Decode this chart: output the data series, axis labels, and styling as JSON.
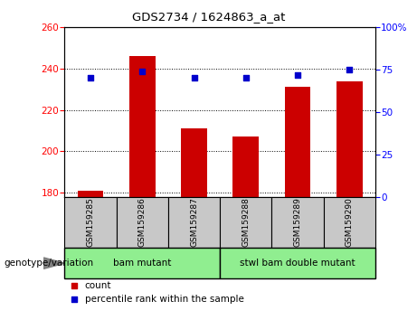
{
  "title": "GDS2734 / 1624863_a_at",
  "samples": [
    "GSM159285",
    "GSM159286",
    "GSM159287",
    "GSM159288",
    "GSM159289",
    "GSM159290"
  ],
  "counts": [
    181,
    246,
    211,
    207,
    231,
    234
  ],
  "percentile_ranks": [
    70,
    74,
    70,
    70,
    72,
    75
  ],
  "groups": [
    {
      "label": "bam mutant",
      "indices": [
        0,
        1,
        2
      ]
    },
    {
      "label": "stwl bam double mutant",
      "indices": [
        3,
        4,
        5
      ]
    }
  ],
  "ylim_left": [
    178,
    260
  ],
  "ylim_right": [
    0,
    100
  ],
  "yticks_left": [
    180,
    200,
    220,
    240,
    260
  ],
  "yticks_right": [
    0,
    25,
    50,
    75,
    100
  ],
  "ytick_right_labels": [
    "0",
    "25",
    "50",
    "75",
    "100%"
  ],
  "bar_color": "#CC0000",
  "dot_color": "#0000CC",
  "bar_width": 0.5,
  "label_box_color": "#C8C8C8",
  "group_box_color": "#90EE90",
  "count_label": "count",
  "percentile_label": "percentile rank within the sample",
  "genotype_label": "genotype/variation"
}
